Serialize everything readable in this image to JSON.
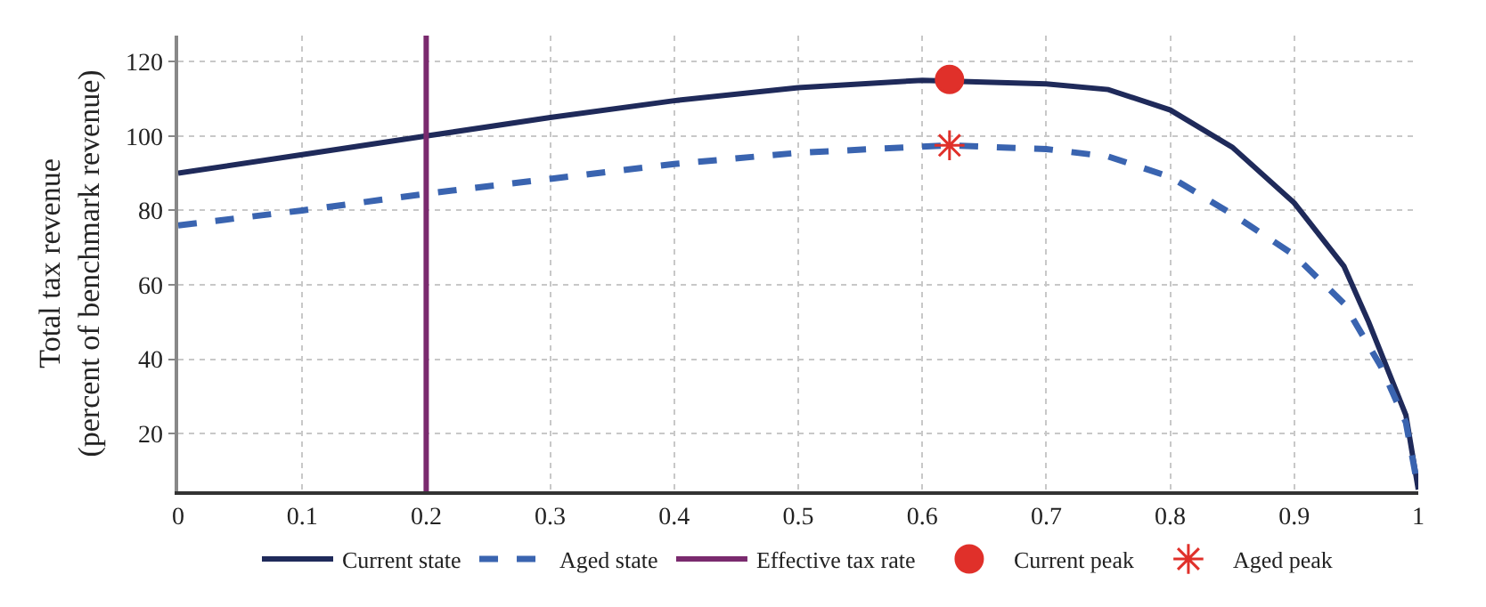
{
  "chart_data": {
    "type": "line",
    "ylabel": "Total tax revenue\n(percent of benchmark revenue)",
    "xlim": [
      0,
      1
    ],
    "xticks": [
      0,
      0.1,
      0.2,
      0.3,
      0.4,
      0.5,
      0.6,
      0.7,
      0.8,
      0.9,
      1
    ],
    "ylim": [
      4.5,
      127
    ],
    "yticks": [
      20,
      40,
      60,
      80,
      100,
      120
    ],
    "grid": true,
    "legend": "bottom",
    "series": [
      {
        "name": "Current state",
        "color": "#1f2a5a",
        "line_style": "solid",
        "marker": "none",
        "x": [
          0,
          0.1,
          0.2,
          0.3,
          0.4,
          0.5,
          0.6,
          0.7,
          0.75,
          0.8,
          0.85,
          0.9,
          0.94,
          0.96,
          0.99,
          1.0
        ],
        "values": [
          90,
          95,
          100,
          105,
          109.5,
          113,
          115,
          114,
          112.5,
          107,
          97,
          82,
          65,
          50,
          25,
          5
        ]
      },
      {
        "name": "Aged state",
        "color": "#3a64b0",
        "line_style": "dashed",
        "marker": "none",
        "x": [
          0,
          0.1,
          0.2,
          0.3,
          0.4,
          0.5,
          0.62,
          0.7,
          0.75,
          0.8,
          0.85,
          0.9,
          0.94,
          0.97,
          0.99,
          1.0
        ],
        "values": [
          76,
          80,
          84.5,
          88.5,
          92.5,
          95.5,
          97.5,
          96.5,
          94.5,
          89,
          79,
          68,
          55,
          38,
          23,
          5
        ]
      },
      {
        "name": "Current peak",
        "type": "scatter",
        "color": "#e0302a",
        "marker": "circle",
        "x": [
          0.622
        ],
        "values": [
          115.2
        ]
      },
      {
        "name": "Aged peak",
        "type": "scatter",
        "color": "#e0302a",
        "marker": "cross",
        "x": [
          0.622
        ],
        "values": [
          97.5
        ]
      }
    ],
    "ref_lines": [
      {
        "axis": "x",
        "value": 0.2,
        "label": "Effective tax rate",
        "color": "#7a2a6e",
        "line_style": "solid"
      }
    ]
  }
}
